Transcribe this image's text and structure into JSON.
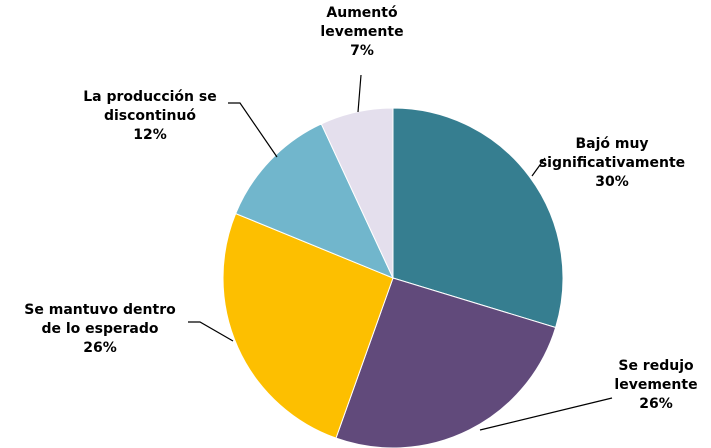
{
  "chart_data": {
    "type": "pie",
    "categories": [
      "Bajó muy\nsignificativamente",
      "Se redujo\nlevemente",
      "Se mantuvo dentro\nde lo esperado",
      "La producción se\ndiscontinuó",
      "Aumentó\nlevemente"
    ],
    "values": [
      30,
      26,
      26,
      12,
      7
    ],
    "value_labels": [
      "30%",
      "26%",
      "26%",
      "12%",
      "7%"
    ],
    "colors": [
      "#367e90",
      "#614a7b",
      "#fdbf00",
      "#71b6cc",
      "#e4dfed"
    ]
  }
}
